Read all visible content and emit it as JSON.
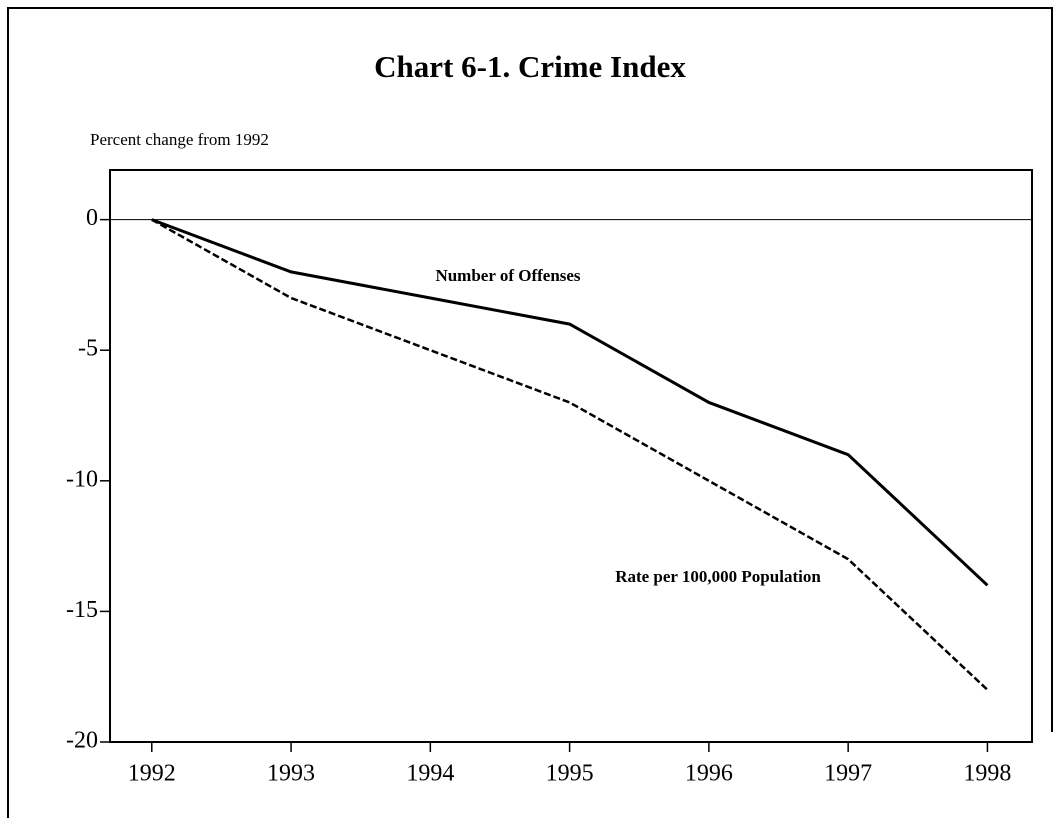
{
  "chart_data": {
    "type": "line",
    "title": "Chart 6-1.  Crime Index",
    "y_label": "Percent change from 1992",
    "x": [
      1992,
      1993,
      1994,
      1995,
      1996,
      1997,
      1998
    ],
    "series": [
      {
        "name": "Number of Offenses",
        "color": "#000000",
        "linestyle": "solid",
        "values": [
          0,
          -2,
          -3,
          -4,
          -7,
          -9,
          -14
        ]
      },
      {
        "name": "Rate per 100,000 Population",
        "color": "#000000",
        "linestyle": "dashed",
        "values": [
          0,
          -3,
          -5,
          -7,
          -10,
          -13,
          -18
        ]
      }
    ],
    "xlim": [
      1991.7,
      1998.32
    ],
    "xticks": [
      1992,
      1993,
      1994,
      1995,
      1996,
      1997,
      1998
    ],
    "ylim": [
      -20,
      1.9
    ],
    "yticks": [
      -20,
      -15,
      -10,
      -5,
      0
    ],
    "zero_line": true
  }
}
